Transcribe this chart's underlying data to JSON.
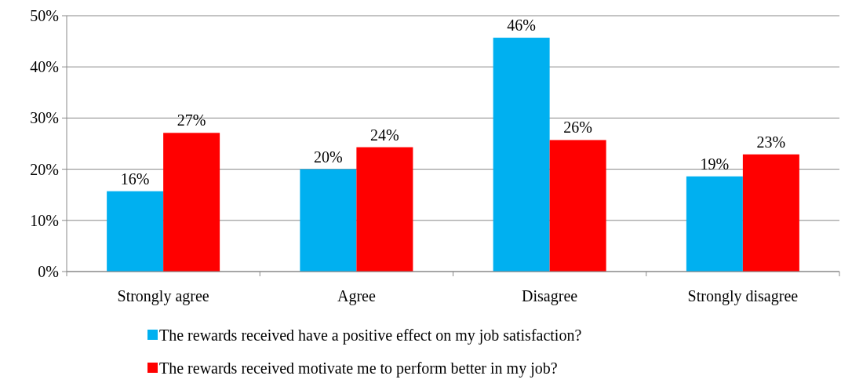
{
  "chart_data": {
    "type": "bar",
    "categories": [
      "Strongly agree",
      "Agree",
      "Disagree",
      "Strongly disagree"
    ],
    "series": [
      {
        "name": "The rewards received have a positive effect on my job satisfaction?",
        "color": "#00b0f0",
        "values": [
          15.7,
          20,
          45.7,
          18.6
        ],
        "value_labels": [
          "16%",
          "20%",
          "46%",
          "19%"
        ]
      },
      {
        "name": "The rewards received motivate me to perform better in my job?",
        "color": "#ff0000",
        "values": [
          27.1,
          24.3,
          25.7,
          22.9
        ],
        "value_labels": [
          "27%",
          "24%",
          "26%",
          "23%"
        ]
      }
    ],
    "ylim": [
      0,
      50
    ],
    "yticks": [
      {
        "value": 0,
        "label": "0%"
      },
      {
        "value": 10,
        "label": "10%"
      },
      {
        "value": 20,
        "label": "20%"
      },
      {
        "value": 30,
        "label": "30%"
      },
      {
        "value": 40,
        "label": "40%"
      },
      {
        "value": 50,
        "label": "50%"
      }
    ],
    "grid": "y",
    "legend": "bottom"
  }
}
